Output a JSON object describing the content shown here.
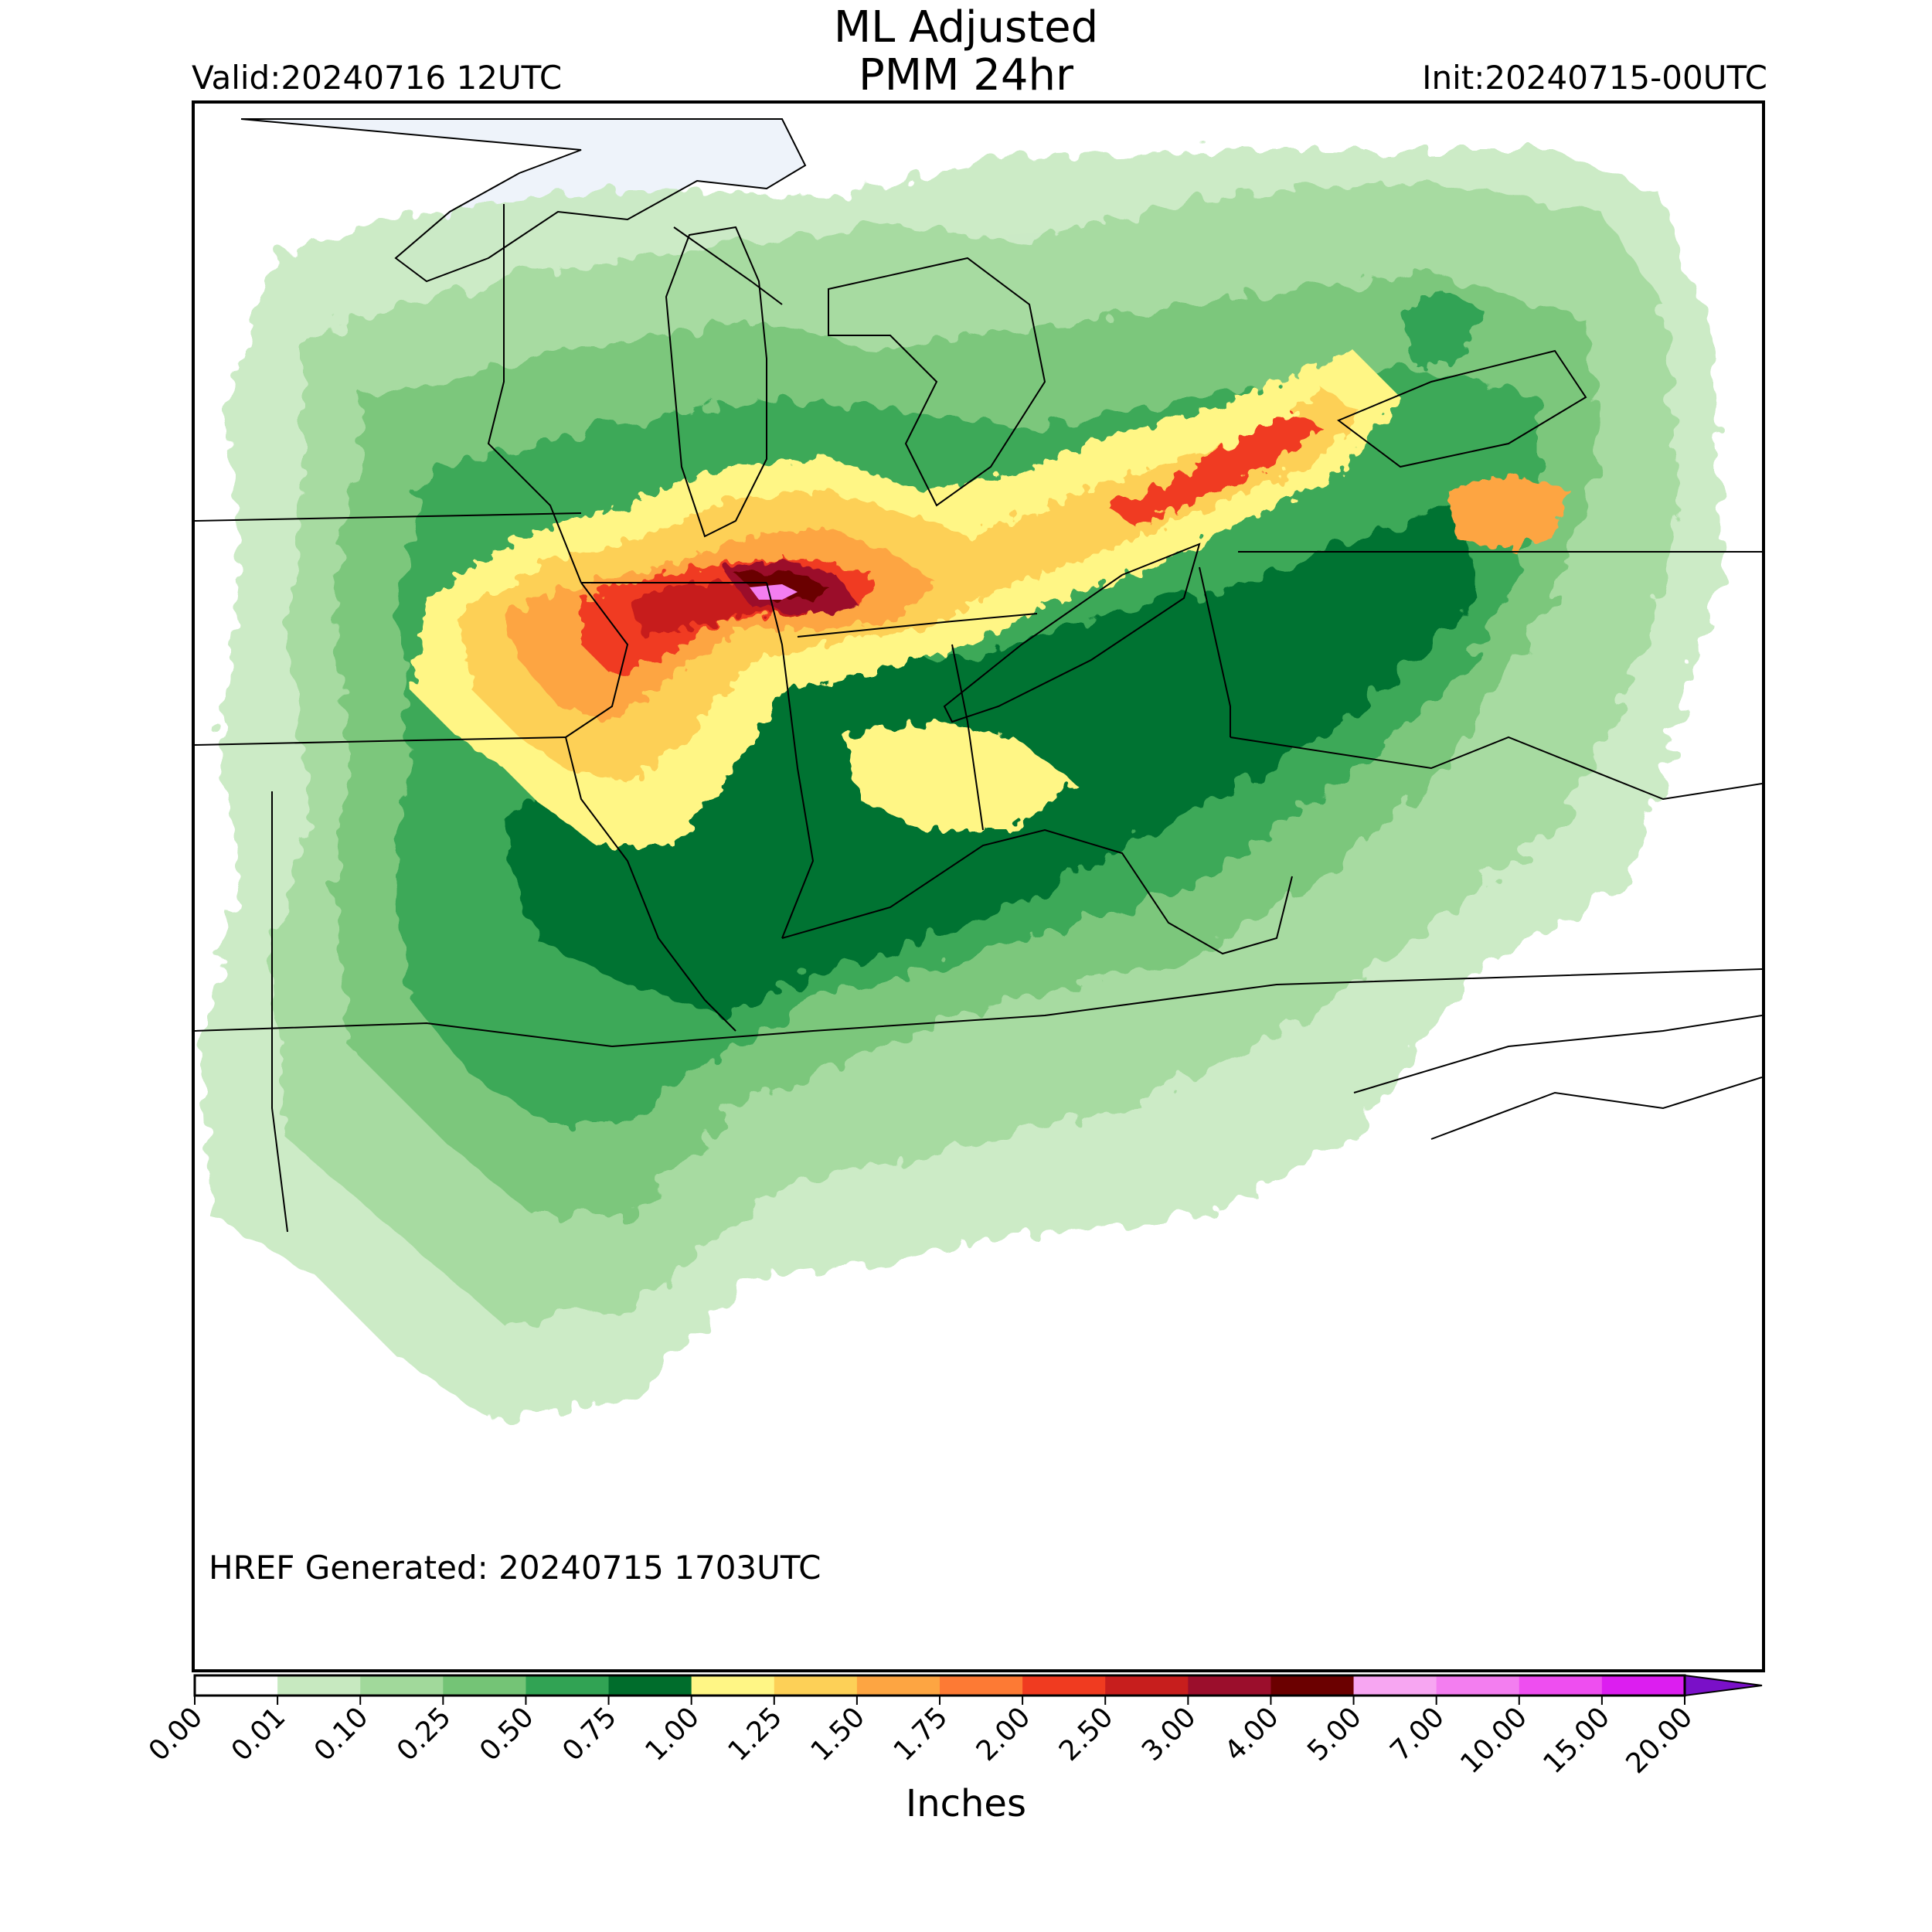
{
  "header": {
    "title_line1": "ML Adjusted",
    "title_line2": "PMM 24hr",
    "valid": "Valid:20240716 12UTC",
    "init": "Init:20240715-00UTC"
  },
  "map": {
    "footer_note": "HREF Generated: 20240715 1703UTC",
    "lake_color": "#eef3fa",
    "border_color": "#000000"
  },
  "colorbar": {
    "unit_label": "Inches",
    "tick_labels": [
      "0.00",
      "0.01",
      "0.10",
      "0.25",
      "0.50",
      "0.75",
      "1.00",
      "1.25",
      "1.50",
      "1.75",
      "2.00",
      "2.50",
      "3.00",
      "4.00",
      "5.00",
      "7.00",
      "10.00",
      "15.00",
      "20.00"
    ],
    "colors": [
      "#ffffff",
      "#c7e9c0",
      "#a1d99b",
      "#74c476",
      "#31a354",
      "#006d2c",
      "#fff685",
      "#fdd057",
      "#fda542",
      "#fd7a34",
      "#f03b20",
      "#c71e1d",
      "#9b0e2c",
      "#6b0000",
      "#f7a6f2",
      "#f37ef0",
      "#ee4ef0",
      "#dc1ef0",
      "#a010e0",
      "#7a10c8"
    ],
    "extend": "max"
  },
  "precip_colors": {
    "light": "#c7e9c0",
    "light2": "#a1d99b",
    "mid": "#74c476",
    "mid2": "#31a354",
    "dark": "#006d2c",
    "yellow": "#fff685",
    "gold": "#fdd057",
    "orange": "#fda542",
    "red": "#f03b20",
    "crimson": "#c71e1d",
    "maroon": "#9b0e2c",
    "darkred": "#6b0000",
    "pink": "#f37ef0"
  }
}
